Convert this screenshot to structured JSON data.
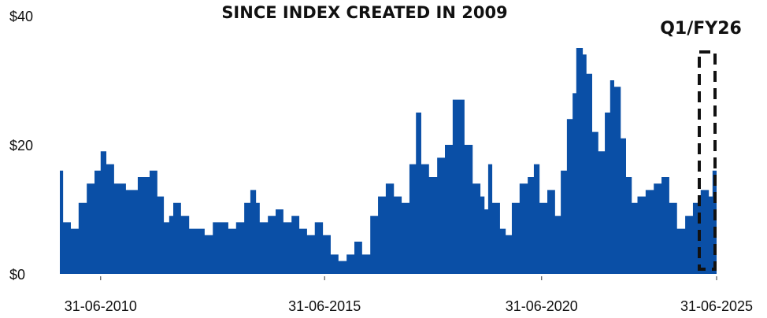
{
  "chart_data": {
    "type": "area",
    "title": "SINCE INDEX CREATED IN 2009",
    "annotation": "Q1/FY26",
    "color": "#0a4fa6",
    "x": [
      2009.4,
      2009.48,
      2009.67,
      2009.86,
      2010.06,
      2010.25,
      2010.4,
      2010.54,
      2010.73,
      2011.02,
      2011.31,
      2011.6,
      2011.79,
      2011.95,
      2012.08,
      2012.18,
      2012.37,
      2012.57,
      2012.76,
      2012.95,
      2013.15,
      2013.34,
      2013.53,
      2013.72,
      2013.92,
      2014.07,
      2014.21,
      2014.3,
      2014.5,
      2014.69,
      2014.88,
      2015.08,
      2015.27,
      2015.46,
      2015.65,
      2015.85,
      2016.04,
      2016.23,
      2016.43,
      2016.62,
      2016.81,
      2017.01,
      2017.2,
      2017.39,
      2017.59,
      2017.78,
      2017.97,
      2018.13,
      2018.26,
      2018.45,
      2018.65,
      2018.84,
      2019.03,
      2019.17,
      2019.32,
      2019.52,
      2019.71,
      2019.81,
      2019.9,
      2020.0,
      2020.19,
      2020.33,
      2020.48,
      2020.67,
      2020.87,
      2021.02,
      2021.16,
      2021.35,
      2021.54,
      2021.68,
      2021.83,
      2021.97,
      2022.06,
      2022.22,
      2022.31,
      2022.45,
      2022.6,
      2022.76,
      2022.89,
      2022.99,
      2023.15,
      2023.28,
      2023.42,
      2023.56,
      2023.76,
      2023.96,
      2024.15,
      2024.34,
      2024.53,
      2024.73,
      2024.92,
      2025.11,
      2025.31,
      2025.4,
      2025.5
    ],
    "values": [
      16,
      8,
      7,
      11,
      14,
      16,
      19,
      17,
      14,
      13,
      15,
      16,
      12,
      8,
      9,
      11,
      9,
      7,
      7,
      6,
      8,
      8,
      7,
      8,
      11,
      13,
      11,
      8,
      9,
      10,
      8,
      9,
      7,
      6,
      8,
      6,
      3,
      2,
      3,
      5,
      3,
      9,
      12,
      14,
      12,
      11,
      17,
      25,
      17,
      15,
      18,
      20,
      27,
      27,
      20,
      14,
      12,
      10,
      17,
      11,
      7,
      6,
      11,
      14,
      15,
      17,
      11,
      13,
      9,
      16,
      24,
      28,
      35,
      34,
      31,
      22,
      19,
      25,
      30,
      29,
      21,
      15,
      11,
      12,
      13,
      14,
      15,
      11,
      7,
      9,
      11,
      13,
      12,
      16,
      14
    ],
    "xlim": [
      2009.4,
      2025.5
    ],
    "xticks": [
      {
        "value": 2010.4,
        "label": "31-06-2010"
      },
      {
        "value": 2015.89,
        "label": "31-06-2015"
      },
      {
        "value": 2021.21,
        "label": "31-06-2020"
      },
      {
        "value": 2025.5,
        "label": "31-06-2025"
      }
    ],
    "ylim": [
      0,
      40
    ],
    "yticks": [
      {
        "value": 0,
        "label": "$0"
      },
      {
        "value": 20,
        "label": "$20"
      },
      {
        "value": 40,
        "label": "$40"
      }
    ],
    "grid": false
  }
}
